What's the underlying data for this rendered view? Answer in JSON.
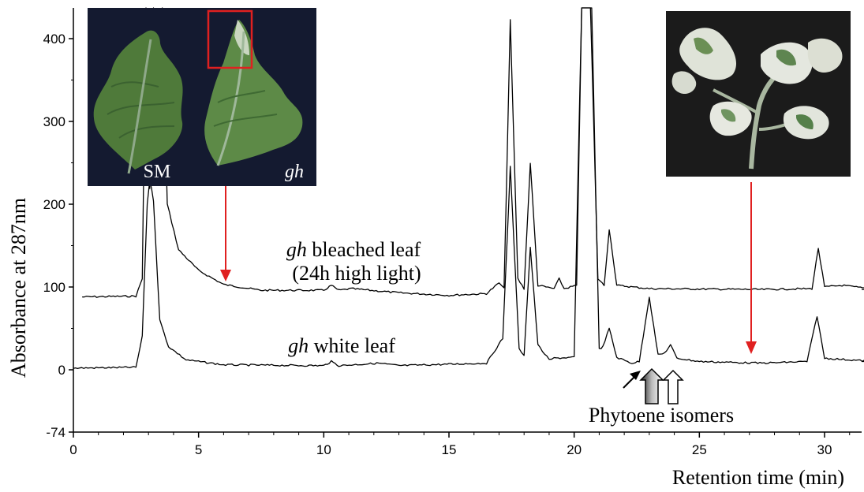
{
  "chart_data": {
    "type": "line",
    "title": "",
    "xlabel": "Retention time (min)",
    "ylabel": "Absorbance at 287nm",
    "xlim": [
      0,
      32
    ],
    "ylim": [
      -74,
      440
    ],
    "x_ticks": [
      "0",
      "5",
      "10",
      "15",
      "20",
      "25",
      "30"
    ],
    "y_ticks": [
      "-74",
      "0",
      "100",
      "200",
      "300",
      "400"
    ],
    "grid": false,
    "series": [
      {
        "name": "gh bleached leaf (24h high light)",
        "name_italic": "gh",
        "name_rest_line1": " bleached leaf",
        "name_line2": "(24h high light)",
        "baseline": 90,
        "points": [
          [
            0.35,
            88
          ],
          [
            2.5,
            89
          ],
          [
            2.75,
            110
          ],
          [
            2.9,
            440
          ],
          [
            3.05,
            220
          ],
          [
            3.2,
            440
          ],
          [
            3.35,
            300
          ],
          [
            3.55,
            440
          ],
          [
            3.75,
            200
          ],
          [
            4.2,
            145
          ],
          [
            5.0,
            120
          ],
          [
            6.0,
            103
          ],
          [
            7.5,
            96
          ],
          [
            10.0,
            96
          ],
          [
            10.3,
            102
          ],
          [
            10.6,
            96
          ],
          [
            11.1,
            98
          ],
          [
            13.0,
            93
          ],
          [
            15.0,
            90
          ],
          [
            16.5,
            92
          ],
          [
            17.0,
            105
          ],
          [
            17.2,
            98
          ],
          [
            17.45,
            422
          ],
          [
            17.75,
            110
          ],
          [
            18.0,
            98
          ],
          [
            18.25,
            250
          ],
          [
            18.55,
            102
          ],
          [
            19.2,
            98
          ],
          [
            19.4,
            110
          ],
          [
            19.6,
            98
          ],
          [
            20.1,
            102
          ],
          [
            20.3,
            440
          ],
          [
            20.65,
            440
          ],
          [
            20.95,
            110
          ],
          [
            21.2,
            102
          ],
          [
            21.4,
            170
          ],
          [
            21.7,
            102
          ],
          [
            23.0,
            98
          ],
          [
            27.5,
            97
          ],
          [
            29.5,
            98
          ],
          [
            29.75,
            147
          ],
          [
            30.0,
            100
          ],
          [
            30.7,
            102
          ],
          [
            32.0,
            97
          ]
        ]
      },
      {
        "name": "gh white leaf",
        "name_italic": "gh",
        "name_rest_line1": " white leaf",
        "baseline": 5,
        "points": [
          [
            0.0,
            2
          ],
          [
            2.5,
            3
          ],
          [
            2.75,
            40
          ],
          [
            2.95,
            200
          ],
          [
            3.05,
            230
          ],
          [
            3.2,
            205
          ],
          [
            3.45,
            60
          ],
          [
            3.8,
            28
          ],
          [
            4.5,
            12
          ],
          [
            6.0,
            6
          ],
          [
            10.0,
            5
          ],
          [
            10.3,
            10
          ],
          [
            10.6,
            5
          ],
          [
            12.2,
            8
          ],
          [
            13.0,
            5
          ],
          [
            16.5,
            8
          ],
          [
            17.15,
            38
          ],
          [
            17.45,
            245
          ],
          [
            17.8,
            25
          ],
          [
            18.0,
            18
          ],
          [
            18.25,
            148
          ],
          [
            18.55,
            30
          ],
          [
            19.0,
            12
          ],
          [
            19.2,
            14
          ],
          [
            20.0,
            15
          ],
          [
            20.3,
            440
          ],
          [
            20.7,
            440
          ],
          [
            21.0,
            25
          ],
          [
            21.15,
            28
          ],
          [
            21.4,
            50
          ],
          [
            21.7,
            15
          ],
          [
            22.3,
            8
          ],
          [
            22.6,
            10
          ],
          [
            23.0,
            88
          ],
          [
            23.35,
            18
          ],
          [
            23.6,
            20
          ],
          [
            23.85,
            30
          ],
          [
            24.1,
            14
          ],
          [
            25.0,
            10
          ],
          [
            27.5,
            8
          ],
          [
            29.3,
            10
          ],
          [
            29.7,
            65
          ],
          [
            30.0,
            14
          ],
          [
            31.0,
            12
          ],
          [
            32.0,
            10
          ]
        ]
      }
    ],
    "annotations": {
      "phytoene": "Phytoene isomers",
      "photo1_label_left": "SM",
      "photo1_label_right": "gh"
    }
  },
  "colors": {
    "trace": "#000000",
    "arrow_red": "#e02020",
    "photo1_bg": "#141a30",
    "photo2_bg": "#1b1b1b",
    "leaf_green": "#4f7a3a",
    "leaf_dark": "#3b6230",
    "leaf_pale": "#8fa98a"
  }
}
